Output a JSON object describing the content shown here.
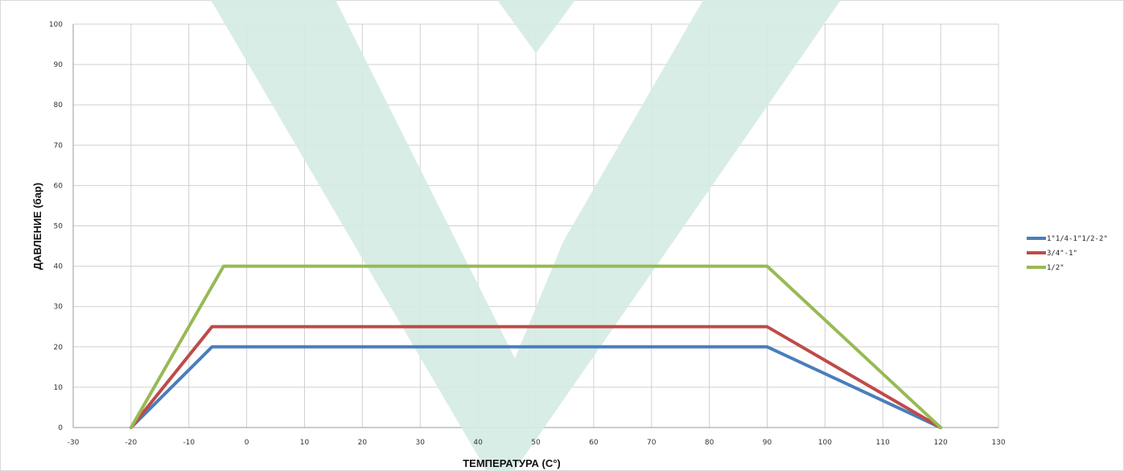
{
  "chart_data": {
    "type": "line",
    "title": "",
    "xlabel": "ТЕМПЕРАТУРА (C°)",
    "ylabel": "ДАВЛЕНИЕ (бар)",
    "xlim": [
      -30,
      130
    ],
    "ylim": [
      0,
      100
    ],
    "xticks": [
      -30,
      -20,
      -10,
      0,
      10,
      20,
      30,
      40,
      50,
      60,
      70,
      80,
      90,
      100,
      110,
      120,
      130
    ],
    "yticks": [
      0,
      10,
      20,
      30,
      40,
      50,
      60,
      70,
      80,
      90,
      100
    ],
    "grid": true,
    "legend_position": "right",
    "series": [
      {
        "name": "1\"1/4-1\"1/2-2\"",
        "color": "#4a7ebb",
        "points": [
          [
            -20,
            0
          ],
          [
            -6,
            20
          ],
          [
            90,
            20
          ],
          [
            120,
            0
          ]
        ]
      },
      {
        "name": "3/4\"-1\"",
        "color": "#be4b48",
        "points": [
          [
            -20,
            0
          ],
          [
            -6,
            25
          ],
          [
            90,
            25
          ],
          [
            120,
            0
          ]
        ]
      },
      {
        "name": "1/2\"",
        "color": "#98b954",
        "points": [
          [
            -20,
            0
          ],
          [
            -4,
            40
          ],
          [
            90,
            40
          ],
          [
            120,
            0
          ]
        ]
      }
    ],
    "watermark": {
      "shape": "V",
      "color": "#d4ebe2"
    }
  }
}
